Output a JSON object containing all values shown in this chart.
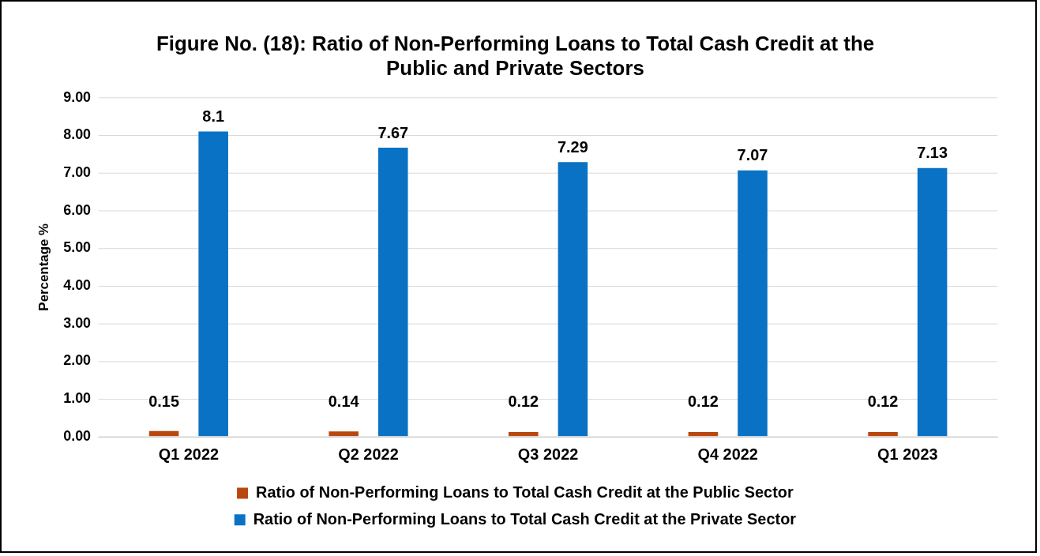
{
  "chart_data": {
    "type": "bar",
    "title": [
      "Figure No. (18): Ratio of Non-Performing Loans to Total Cash Credit at the",
      "Public and Private Sectors"
    ],
    "ylabel": "Percentage %",
    "categories": [
      "Q1 2022",
      "Q2 2022",
      "Q3 2022",
      "Q4 2022",
      "Q1 2023"
    ],
    "series": [
      {
        "name": "Ratio of Non-Performing Loans to Total Cash Credit at the Public Sector",
        "color": "#b8480f",
        "values": [
          0.15,
          0.14,
          0.12,
          0.12,
          0.12
        ]
      },
      {
        "name": "Ratio of Non-Performing Loans to Total Cash Credit at the Private Sector",
        "color": "#0a72c4",
        "values": [
          8.1,
          7.67,
          7.29,
          7.07,
          7.13
        ]
      }
    ],
    "ylim": [
      0,
      9
    ],
    "yticks": [
      {
        "value": 0,
        "label": "0.00"
      },
      {
        "value": 1,
        "label": "1.00"
      },
      {
        "value": 2,
        "label": "2.00"
      },
      {
        "value": 3,
        "label": "3.00"
      },
      {
        "value": 4,
        "label": "4.00"
      },
      {
        "value": 5,
        "label": "5.00"
      },
      {
        "value": 6,
        "label": "6.00"
      },
      {
        "value": 7,
        "label": "7.00"
      },
      {
        "value": 8,
        "label": "8.00"
      },
      {
        "value": 9,
        "label": "9.00"
      }
    ],
    "grid": "y",
    "legend": "bottom",
    "data_labels": true
  }
}
